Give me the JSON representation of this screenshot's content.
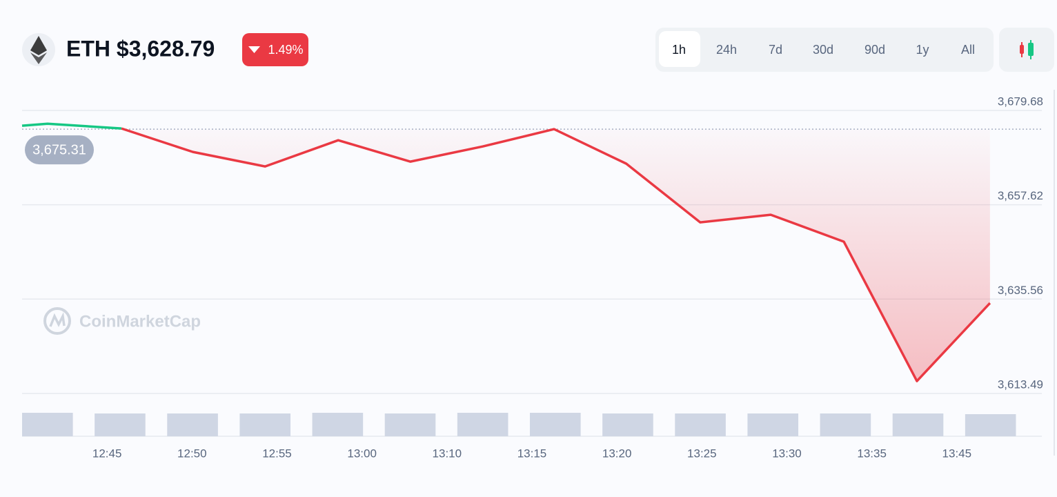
{
  "header": {
    "title": "ETH $3,628.79",
    "change": "1.49%",
    "tabs": [
      "1h",
      "24h",
      "7d",
      "30d",
      "90d",
      "1y",
      "All"
    ]
  },
  "watermark": "CoinMarketCap",
  "chart_data": {
    "type": "line",
    "x": [
      40.0,
      41.5,
      45.85,
      50.05,
      54.3,
      58.6,
      62.85,
      67.1,
      71.3,
      75.55,
      79.9,
      84.05,
      88.35,
      92.65,
      96.95
    ],
    "series": [
      {
        "name": "ETH",
        "color": "#ea3943",
        "up_color": "#16c784",
        "values": [
          3676.1,
          3676.58,
          3675.46,
          3669.97,
          3666.58,
          3672.71,
          3667.71,
          3671.26,
          3675.31,
          3667.23,
          3653.51,
          3655.28,
          3648.99,
          3616.39,
          3634.63
        ]
      }
    ],
    "baseline": {
      "value": 3675.31,
      "label": "3,675.31"
    },
    "volume": {
      "color": "#cfd6e4",
      "ylim": [
        0,
        34
      ],
      "values": [
        34,
        33,
        33,
        33,
        34,
        33,
        34,
        34,
        33,
        33,
        33,
        33,
        33,
        32
      ]
    },
    "xlim": [
      40,
      100
    ],
    "xticks": [
      {
        "value": 45,
        "label": "12:45"
      },
      {
        "value": 50,
        "label": "12:50"
      },
      {
        "value": 55,
        "label": "12:55"
      },
      {
        "value": 60,
        "label": "13:00"
      },
      {
        "value": 65,
        "label": "13:10"
      },
      {
        "value": 70,
        "label": "13:15"
      },
      {
        "value": 75,
        "label": "13:20"
      },
      {
        "value": 80,
        "label": "13:25"
      },
      {
        "value": 85,
        "label": "13:30"
      },
      {
        "value": 90,
        "label": "13:35"
      },
      {
        "value": 95,
        "label": "13:45"
      }
    ],
    "ylim": [
      3613.49,
      3679.68
    ],
    "yticks": [
      {
        "value": 3613.49,
        "label": "3,613.49"
      },
      {
        "value": 3635.56,
        "label": "3,635.56"
      },
      {
        "value": 3657.62,
        "label": "3,657.62"
      },
      {
        "value": 3679.68,
        "label": "3,679.68"
      }
    ],
    "grid": true
  }
}
